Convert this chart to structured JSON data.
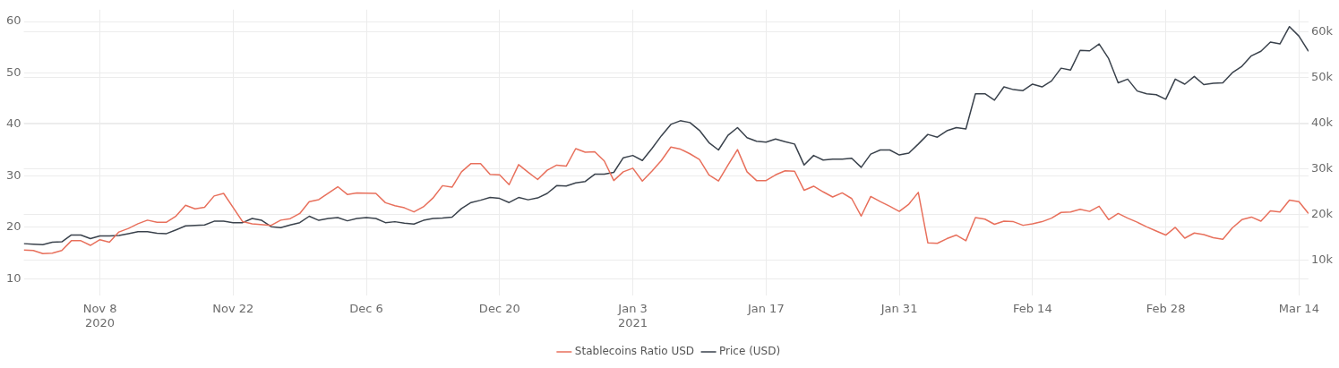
{
  "chart_data": {
    "type": "line",
    "xlim": [
      "2020-10-31",
      "2021-03-15"
    ],
    "xticks": [
      {
        "value": "2020-11-08",
        "label": "Nov 8\n2020"
      },
      {
        "value": "2020-11-22",
        "label": "Nov 22"
      },
      {
        "value": "2020-12-06",
        "label": "Dec 6"
      },
      {
        "value": "2020-12-20",
        "label": "Dec 20"
      },
      {
        "value": "2021-01-03",
        "label": "Jan 3\n2021"
      },
      {
        "value": "2021-01-17",
        "label": "Jan 17"
      },
      {
        "value": "2021-01-31",
        "label": "Jan 31"
      },
      {
        "value": "2021-02-14",
        "label": "Feb 14"
      },
      {
        "value": "2021-02-28",
        "label": "Feb 28"
      },
      {
        "value": "2021-03-14",
        "label": "Mar 14"
      }
    ],
    "ylim": [
      6.8,
      62.3
    ],
    "yticks": [
      10,
      20,
      30,
      40,
      50,
      60
    ],
    "y2lim": [
      2300,
      64800
    ],
    "y2ticks": [
      {
        "value": 10000,
        "label": "10k"
      },
      {
        "value": 20000,
        "label": "20k"
      },
      {
        "value": 30000,
        "label": "30k"
      },
      {
        "value": 40000,
        "label": "40k"
      },
      {
        "value": 50000,
        "label": "50k"
      },
      {
        "value": 60000,
        "label": "60k"
      }
    ],
    "grid": true,
    "legend": "bottom",
    "line_style": "solid",
    "marker": "none",
    "series": [
      {
        "name": "Stablecoins Ratio USD",
        "color": "#e8705c",
        "axis": "y",
        "x": [
          "2020-10-31",
          "2020-11-01",
          "2020-11-02",
          "2020-11-03",
          "2020-11-04",
          "2020-11-05",
          "2020-11-06",
          "2020-11-07",
          "2020-11-08",
          "2020-11-09",
          "2020-11-10",
          "2020-11-11",
          "2020-11-12",
          "2020-11-13",
          "2020-11-14",
          "2020-11-15",
          "2020-11-16",
          "2020-11-17",
          "2020-11-18",
          "2020-11-19",
          "2020-11-20",
          "2020-11-21",
          "2020-11-23",
          "2020-11-24",
          "2020-11-26",
          "2020-11-27",
          "2020-11-28",
          "2020-11-29",
          "2020-11-30",
          "2020-12-01",
          "2020-12-03",
          "2020-12-04",
          "2020-12-05",
          "2020-12-07",
          "2020-12-08",
          "2020-12-09",
          "2020-12-10",
          "2020-12-11",
          "2020-12-12",
          "2020-12-13",
          "2020-12-14",
          "2020-12-15",
          "2020-12-16",
          "2020-12-17",
          "2020-12-18",
          "2020-12-19",
          "2020-12-20",
          "2020-12-21",
          "2020-12-22",
          "2020-12-23",
          "2020-12-24",
          "2020-12-25",
          "2020-12-26",
          "2020-12-27",
          "2020-12-28",
          "2020-12-29",
          "2020-12-30",
          "2020-12-31",
          "2021-01-01",
          "2021-01-02",
          "2021-01-03",
          "2021-01-04",
          "2021-01-05",
          "2021-01-06",
          "2021-01-07",
          "2021-01-08",
          "2021-01-09",
          "2021-01-10",
          "2021-01-11",
          "2021-01-12",
          "2021-01-13",
          "2021-01-14",
          "2021-01-15",
          "2021-01-16",
          "2021-01-17",
          "2021-01-18",
          "2021-01-19",
          "2021-01-20",
          "2021-01-21",
          "2021-01-22",
          "2021-01-23",
          "2021-01-24",
          "2021-01-25",
          "2021-01-26",
          "2021-01-27",
          "2021-01-28",
          "2021-01-29",
          "2021-01-30",
          "2021-01-31",
          "2021-02-01",
          "2021-02-02",
          "2021-02-03",
          "2021-02-04",
          "2021-02-05",
          "2021-02-06",
          "2021-02-07",
          "2021-02-08",
          "2021-02-09",
          "2021-02-10",
          "2021-02-11",
          "2021-02-12",
          "2021-02-13",
          "2021-02-14",
          "2021-02-15",
          "2021-02-16",
          "2021-02-17",
          "2021-02-18",
          "2021-02-19",
          "2021-02-20",
          "2021-02-21",
          "2021-02-22",
          "2021-02-23",
          "2021-02-24",
          "2021-02-25",
          "2021-02-26",
          "2021-02-27",
          "2021-02-28",
          "2021-03-01",
          "2021-03-02",
          "2021-03-03",
          "2021-03-04",
          "2021-03-05",
          "2021-03-06",
          "2021-03-07",
          "2021-03-08",
          "2021-03-09",
          "2021-03-10",
          "2021-03-11",
          "2021-03-12",
          "2021-03-13",
          "2021-03-14",
          "2021-03-15"
        ],
        "values": [
          15.6,
          15.5,
          14.9,
          15.0,
          15.5,
          17.4,
          17.4,
          16.5,
          17.6,
          17.1,
          19.1,
          19.8,
          20.7,
          21.4,
          21.0,
          21.0,
          22.2,
          24.3,
          23.6,
          23.9,
          26.1,
          26.6,
          21.1,
          20.7,
          20.4,
          21.4,
          21.7,
          22.7,
          25.0,
          25.4,
          27.9,
          26.4,
          26.7,
          26.6,
          24.8,
          24.2,
          23.8,
          23.0,
          24.0,
          25.7,
          28.1,
          27.8,
          30.8,
          32.4,
          32.4,
          30.3,
          30.2,
          28.3,
          32.2,
          30.7,
          29.3,
          31.1,
          32.1,
          31.9,
          35.3,
          34.6,
          34.7,
          32.9,
          29.1,
          30.8,
          31.5,
          29.0,
          30.9,
          33.0,
          35.6,
          35.2,
          34.3,
          33.2,
          30.2,
          29.0,
          32.1,
          35.1,
          30.8,
          29.1,
          29.1,
          30.2,
          31.0,
          30.9,
          27.2,
          28.0,
          26.9,
          25.9,
          26.7,
          25.6,
          22.2,
          26.0,
          25.0,
          24.1,
          23.1,
          24.5,
          26.8,
          17.0,
          16.9,
          17.8,
          18.5,
          17.4,
          21.9,
          21.6,
          20.6,
          21.2,
          21.1,
          20.4,
          20.7,
          21.1,
          21.8,
          22.9,
          23.0,
          23.5,
          23.1,
          24.1,
          21.5,
          22.7,
          21.8,
          21.0,
          20.1,
          19.3,
          18.5,
          20.0,
          17.9,
          18.9,
          18.6,
          18.0,
          17.7,
          19.9,
          21.5,
          22.0,
          21.2,
          23.2,
          23.0,
          25.3,
          25.0,
          22.7
        ]
      },
      {
        "name": "Price (USD)",
        "color": "#3a424c",
        "axis": "y2",
        "x": [
          "2020-10-31",
          "2020-11-01",
          "2020-11-02",
          "2020-11-03",
          "2020-11-04",
          "2020-11-05",
          "2020-11-06",
          "2020-11-07",
          "2020-11-08",
          "2020-11-09",
          "2020-11-10",
          "2020-11-11",
          "2020-11-12",
          "2020-11-13",
          "2020-11-14",
          "2020-11-15",
          "2020-11-16",
          "2020-11-17",
          "2020-11-18",
          "2020-11-19",
          "2020-11-20",
          "2020-11-21",
          "2020-11-22",
          "2020-11-23",
          "2020-11-24",
          "2020-11-25",
          "2020-11-26",
          "2020-11-27",
          "2020-11-28",
          "2020-11-29",
          "2020-11-30",
          "2020-12-01",
          "2020-12-02",
          "2020-12-03",
          "2020-12-04",
          "2020-12-05",
          "2020-12-06",
          "2020-12-07",
          "2020-12-08",
          "2020-12-09",
          "2020-12-10",
          "2020-12-11",
          "2020-12-12",
          "2020-12-13",
          "2020-12-14",
          "2020-12-15",
          "2020-12-16",
          "2020-12-17",
          "2020-12-18",
          "2020-12-19",
          "2020-12-20",
          "2020-12-21",
          "2020-12-22",
          "2020-12-23",
          "2020-12-24",
          "2020-12-25",
          "2020-12-26",
          "2020-12-27",
          "2020-12-28",
          "2020-12-29",
          "2020-12-30",
          "2020-12-31",
          "2021-01-01",
          "2021-01-02",
          "2021-01-03",
          "2021-01-04",
          "2021-01-05",
          "2021-01-06",
          "2021-01-07",
          "2021-01-08",
          "2021-01-09",
          "2021-01-10",
          "2021-01-11",
          "2021-01-12",
          "2021-01-13",
          "2021-01-14",
          "2021-01-15",
          "2021-01-16",
          "2021-01-17",
          "2021-01-18",
          "2021-01-19",
          "2021-01-20",
          "2021-01-21",
          "2021-01-22",
          "2021-01-23",
          "2021-01-24",
          "2021-01-25",
          "2021-01-26",
          "2021-01-27",
          "2021-01-28",
          "2021-01-29",
          "2021-01-30",
          "2021-01-31",
          "2021-02-01",
          "2021-02-02",
          "2021-02-03",
          "2021-02-04",
          "2021-02-05",
          "2021-02-06",
          "2021-02-07",
          "2021-02-08",
          "2021-02-09",
          "2021-02-10",
          "2021-02-11",
          "2021-02-12",
          "2021-02-13",
          "2021-02-14",
          "2021-02-15",
          "2021-02-16",
          "2021-02-17",
          "2021-02-18",
          "2021-02-19",
          "2021-02-20",
          "2021-02-21",
          "2021-02-22",
          "2021-02-23",
          "2021-02-24",
          "2021-02-25",
          "2021-02-26",
          "2021-02-27",
          "2021-02-28",
          "2021-03-01",
          "2021-03-02",
          "2021-03-03",
          "2021-03-04",
          "2021-03-05",
          "2021-03-06",
          "2021-03-07",
          "2021-03-08",
          "2021-03-09",
          "2021-03-10",
          "2021-03-11",
          "2021-03-12",
          "2021-03-13",
          "2021-03-14",
          "2021-03-15"
        ],
        "values": [
          13600,
          13500,
          13400,
          13900,
          14000,
          15500,
          15500,
          14700,
          15300,
          15300,
          15400,
          15800,
          16200,
          16200,
          15900,
          15800,
          16600,
          17500,
          17600,
          17700,
          18500,
          18500,
          18200,
          18200,
          19100,
          18700,
          17300,
          17100,
          17700,
          18200,
          19600,
          18700,
          19100,
          19300,
          18600,
          19100,
          19300,
          19100,
          18200,
          18400,
          18100,
          17900,
          18700,
          19100,
          19200,
          19400,
          21300,
          22600,
          23100,
          23700,
          23500,
          22600,
          23700,
          23200,
          23600,
          24600,
          26300,
          26200,
          26900,
          27200,
          28800,
          28800,
          29200,
          32400,
          32900,
          31800,
          34400,
          37200,
          39700,
          40500,
          40100,
          38400,
          35700,
          34100,
          37300,
          39000,
          36800,
          36000,
          35800,
          36500,
          35900,
          35400,
          30800,
          32900,
          31900,
          32100,
          32100,
          32300,
          30300,
          33200,
          34100,
          34100,
          33000,
          33400,
          35400,
          37500,
          36900,
          38300,
          39000,
          38700,
          46400,
          46400,
          45000,
          47900,
          47300,
          47100,
          48500,
          47900,
          49200,
          52000,
          51600,
          55900,
          55800,
          57300,
          54100,
          48800,
          49600,
          47000,
          46400,
          46200,
          45200,
          49600,
          48500,
          50200,
          48400,
          48700,
          48800,
          51000,
          52400,
          54700,
          55700,
          57700,
          57300,
          61100,
          59000,
          55700
        ]
      }
    ]
  }
}
